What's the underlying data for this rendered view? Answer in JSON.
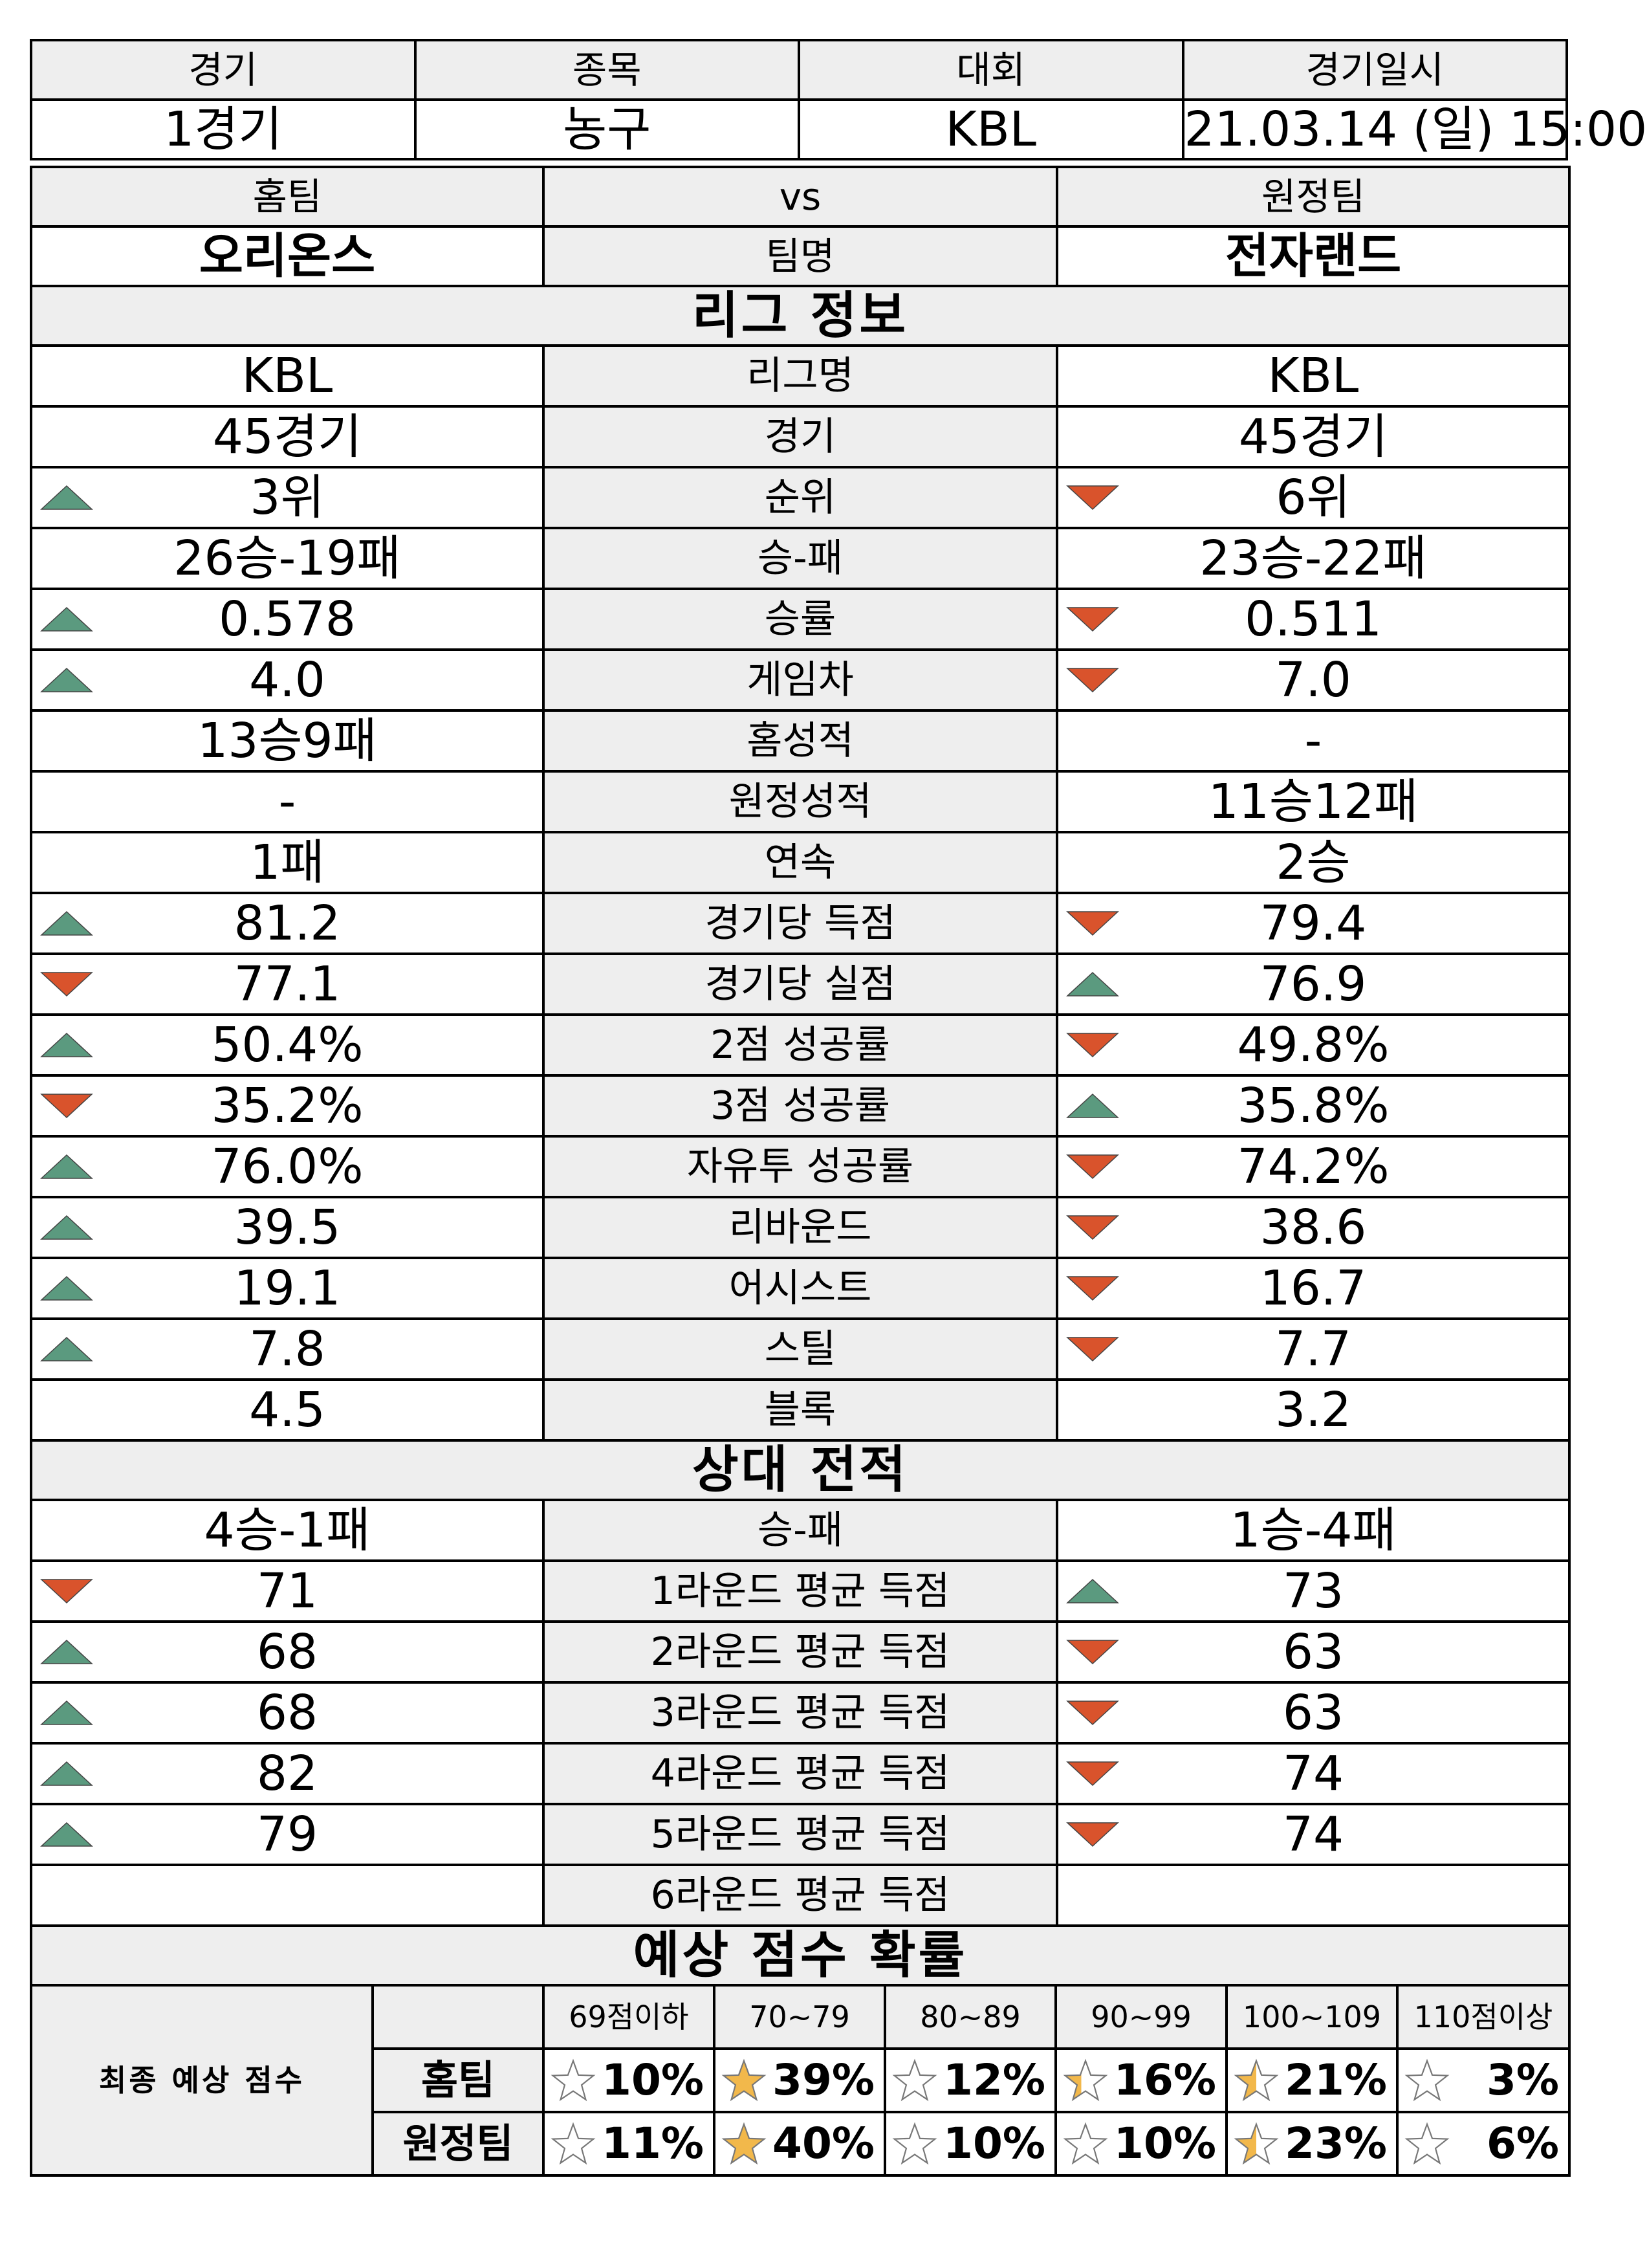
{
  "match": {
    "headers": [
      "경기",
      "종목",
      "대회",
      "경기일시"
    ],
    "game": "1경기",
    "sport": "농구",
    "league": "KBL",
    "datetime": "21.03.14 (일) 15:00"
  },
  "teams": {
    "home_label": "홈팀",
    "vs_label": "vs",
    "away_label": "원정팀",
    "home_name": "오리온스",
    "name_label": "팀명",
    "away_name": "전자랜드"
  },
  "colors": {
    "up": "#5b9a7f",
    "down": "#d9532c",
    "header_bg": "#eeeeee",
    "star": "#f2b84b"
  },
  "league_section": {
    "title": "리그 정보",
    "rows": [
      {
        "label": "리그명",
        "home": "KBL",
        "away": "KBL",
        "home_arrow": "",
        "away_arrow": ""
      },
      {
        "label": "경기",
        "home": "45경기",
        "away": "45경기",
        "home_arrow": "",
        "away_arrow": ""
      },
      {
        "label": "순위",
        "home": "3위",
        "away": "6위",
        "home_arrow": "up",
        "away_arrow": "down"
      },
      {
        "label": "승-패",
        "home": "26승-19패",
        "away": "23승-22패",
        "home_arrow": "",
        "away_arrow": ""
      },
      {
        "label": "승률",
        "home": "0.578",
        "away": "0.511",
        "home_arrow": "up",
        "away_arrow": "down"
      },
      {
        "label": "게임차",
        "home": "4.0",
        "away": "7.0",
        "home_arrow": "up",
        "away_arrow": "down"
      },
      {
        "label": "홈성적",
        "home": "13승9패",
        "away": "-",
        "home_arrow": "",
        "away_arrow": ""
      },
      {
        "label": "원정성적",
        "home": "-",
        "away": "11승12패",
        "home_arrow": "",
        "away_arrow": ""
      },
      {
        "label": "연속",
        "home": "1패",
        "away": "2승",
        "home_arrow": "",
        "away_arrow": ""
      },
      {
        "label": "경기당 득점",
        "home": "81.2",
        "away": "79.4",
        "home_arrow": "up",
        "away_arrow": "down"
      },
      {
        "label": "경기당 실점",
        "home": "77.1",
        "away": "76.9",
        "home_arrow": "down",
        "away_arrow": "up"
      },
      {
        "label": "2점 성공률",
        "home": "50.4%",
        "away": "49.8%",
        "home_arrow": "up",
        "away_arrow": "down"
      },
      {
        "label": "3점 성공률",
        "home": "35.2%",
        "away": "35.8%",
        "home_arrow": "down",
        "away_arrow": "up"
      },
      {
        "label": "자유투 성공률",
        "home": "76.0%",
        "away": "74.2%",
        "home_arrow": "up",
        "away_arrow": "down"
      },
      {
        "label": "리바운드",
        "home": "39.5",
        "away": "38.6",
        "home_arrow": "up",
        "away_arrow": "down"
      },
      {
        "label": "어시스트",
        "home": "19.1",
        "away": "16.7",
        "home_arrow": "up",
        "away_arrow": "down"
      },
      {
        "label": "스틸",
        "home": "7.8",
        "away": "7.7",
        "home_arrow": "up",
        "away_arrow": "down"
      },
      {
        "label": "블록",
        "home": "4.5",
        "away": "3.2",
        "home_arrow": "",
        "away_arrow": ""
      }
    ]
  },
  "h2h_section": {
    "title": "상대 전적",
    "rows": [
      {
        "label": "승-패",
        "home": "4승-1패",
        "away": "1승-4패",
        "home_arrow": "",
        "away_arrow": ""
      },
      {
        "label": "1라운드 평균 득점",
        "home": "71",
        "away": "73",
        "home_arrow": "down",
        "away_arrow": "up"
      },
      {
        "label": "2라운드 평균 득점",
        "home": "68",
        "away": "63",
        "home_arrow": "up",
        "away_arrow": "down"
      },
      {
        "label": "3라운드 평균 득점",
        "home": "68",
        "away": "63",
        "home_arrow": "up",
        "away_arrow": "down"
      },
      {
        "label": "4라운드 평균 득점",
        "home": "82",
        "away": "74",
        "home_arrow": "up",
        "away_arrow": "down"
      },
      {
        "label": "5라운드 평균 득점",
        "home": "79",
        "away": "74",
        "home_arrow": "up",
        "away_arrow": "down"
      },
      {
        "label": "6라운드 평균 득점",
        "home": "",
        "away": "",
        "home_arrow": "",
        "away_arrow": ""
      }
    ]
  },
  "prediction": {
    "title": "예상 점수 확률",
    "final_label": "최종 예상 점수",
    "ranges": [
      "69점이하",
      "70~79",
      "80~89",
      "90~99",
      "100~109",
      "110점이상"
    ],
    "home_label": "홈팀",
    "away_label": "원정팀",
    "home": [
      {
        "pct": "10%",
        "star_fill": 0
      },
      {
        "pct": "39%",
        "star_fill": 1
      },
      {
        "pct": "12%",
        "star_fill": 0
      },
      {
        "pct": "16%",
        "star_fill": 0.4
      },
      {
        "pct": "21%",
        "star_fill": 0.5
      },
      {
        "pct": "3%",
        "star_fill": 0
      }
    ],
    "away": [
      {
        "pct": "11%",
        "star_fill": 0
      },
      {
        "pct": "40%",
        "star_fill": 1
      },
      {
        "pct": "10%",
        "star_fill": 0
      },
      {
        "pct": "10%",
        "star_fill": 0
      },
      {
        "pct": "23%",
        "star_fill": 0.5
      },
      {
        "pct": "6%",
        "star_fill": 0
      }
    ]
  }
}
